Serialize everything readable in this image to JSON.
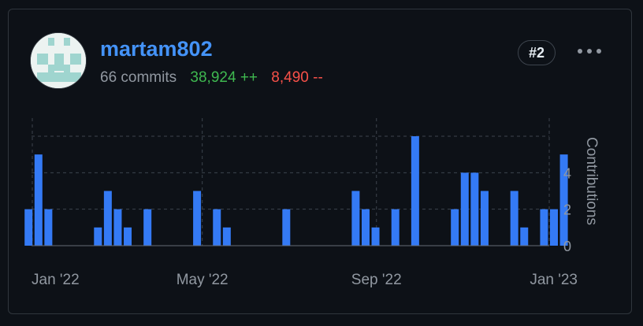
{
  "contributor": {
    "username": "martam802",
    "commits": "66 commits",
    "additions": "38,924 ++",
    "deletions": "8,490 --",
    "rank": "#2",
    "more_icon": "kebab-horizontal-icon",
    "avatar_icon": "identicon"
  },
  "colors": {
    "background": "#0d1117",
    "border": "#30363d",
    "accent": "#4493f8",
    "bar": "#347af5",
    "additions": "#3fb950",
    "deletions": "#f85149",
    "muted": "#9198a1"
  },
  "chart_data": {
    "type": "bar",
    "ylabel": "Contributions",
    "ylim": [
      0,
      6
    ],
    "yticks": [
      0,
      2,
      4
    ],
    "x_ticks": [
      {
        "label": "Jan '22",
        "date": "2022-01-01"
      },
      {
        "label": "May '22",
        "date": "2022-05-01"
      },
      {
        "label": "Sep '22",
        "date": "2022-09-01"
      },
      {
        "label": "Jan '23",
        "date": "2023-01-01"
      }
    ],
    "grid": true,
    "series": [
      {
        "values": [
          {
            "week": "2021-12-26",
            "value": 2
          },
          {
            "week": "2022-01-02",
            "value": 5
          },
          {
            "week": "2022-01-09",
            "value": 2
          },
          {
            "week": "2022-02-13",
            "value": 1
          },
          {
            "week": "2022-02-20",
            "value": 3
          },
          {
            "week": "2022-02-27",
            "value": 2
          },
          {
            "week": "2022-03-06",
            "value": 1
          },
          {
            "week": "2022-03-20",
            "value": 2
          },
          {
            "week": "2022-04-24",
            "value": 3
          },
          {
            "week": "2022-05-08",
            "value": 2
          },
          {
            "week": "2022-05-15",
            "value": 1
          },
          {
            "week": "2022-06-26",
            "value": 2
          },
          {
            "week": "2022-08-14",
            "value": 3
          },
          {
            "week": "2022-08-21",
            "value": 2
          },
          {
            "week": "2022-08-28",
            "value": 1
          },
          {
            "week": "2022-09-11",
            "value": 2
          },
          {
            "week": "2022-09-25",
            "value": 6
          },
          {
            "week": "2022-10-23",
            "value": 2
          },
          {
            "week": "2022-10-30",
            "value": 4
          },
          {
            "week": "2022-11-06",
            "value": 4
          },
          {
            "week": "2022-11-13",
            "value": 3
          },
          {
            "week": "2022-12-04",
            "value": 3
          },
          {
            "week": "2022-12-11",
            "value": 1
          },
          {
            "week": "2022-12-25",
            "value": 2
          },
          {
            "week": "2023-01-01",
            "value": 2
          },
          {
            "week": "2023-01-08",
            "value": 5
          }
        ]
      }
    ]
  }
}
